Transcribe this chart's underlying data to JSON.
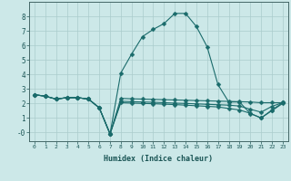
{
  "xlabel": "Humidex (Indice chaleur)",
  "background_color": "#cce8e8",
  "line_color": "#1a6b6b",
  "x_data": [
    0,
    1,
    2,
    3,
    4,
    5,
    6,
    7,
    8,
    9,
    10,
    11,
    12,
    13,
    14,
    15,
    16,
    17,
    18,
    19,
    20,
    21,
    22,
    23
  ],
  "y_main": [
    2.6,
    2.5,
    2.3,
    2.4,
    2.4,
    2.3,
    1.7,
    -0.1,
    4.1,
    5.4,
    6.6,
    7.1,
    7.5,
    8.2,
    8.2,
    7.3,
    5.9,
    3.3,
    2.1,
    2.1,
    1.3,
    1.0,
    1.5,
    2.0
  ],
  "y_line2": [
    2.6,
    2.5,
    2.3,
    2.4,
    2.4,
    2.3,
    1.7,
    -0.1,
    2.35,
    2.32,
    2.3,
    2.28,
    2.26,
    2.24,
    2.22,
    2.2,
    2.18,
    2.16,
    2.14,
    2.12,
    2.1,
    2.05,
    2.05,
    2.05
  ],
  "y_line3": [
    2.6,
    2.5,
    2.3,
    2.4,
    2.4,
    2.3,
    1.7,
    -0.1,
    2.15,
    2.12,
    2.1,
    2.08,
    2.05,
    2.02,
    2.0,
    1.97,
    1.94,
    1.91,
    1.88,
    1.82,
    1.6,
    1.4,
    1.8,
    2.05
  ],
  "y_line4": [
    2.6,
    2.5,
    2.3,
    2.4,
    2.4,
    2.3,
    1.7,
    -0.1,
    2.05,
    2.02,
    2.0,
    1.98,
    1.95,
    1.92,
    1.88,
    1.84,
    1.8,
    1.76,
    1.65,
    1.55,
    1.32,
    1.0,
    1.55,
    2.05
  ],
  "xlim": [
    -0.5,
    23.5
  ],
  "ylim": [
    -0.6,
    9.0
  ],
  "yticks": [
    0,
    1,
    2,
    3,
    4,
    5,
    6,
    7,
    8
  ],
  "ytick_labels": [
    "-0",
    "1",
    "2",
    "3",
    "4",
    "5",
    "6",
    "7",
    "8"
  ],
  "xticks": [
    0,
    1,
    2,
    3,
    4,
    5,
    6,
    7,
    8,
    9,
    10,
    11,
    12,
    13,
    14,
    15,
    16,
    17,
    18,
    19,
    20,
    21,
    22,
    23
  ],
  "grid_color": "#aacccc",
  "markersize": 2.5,
  "linewidth": 0.8
}
